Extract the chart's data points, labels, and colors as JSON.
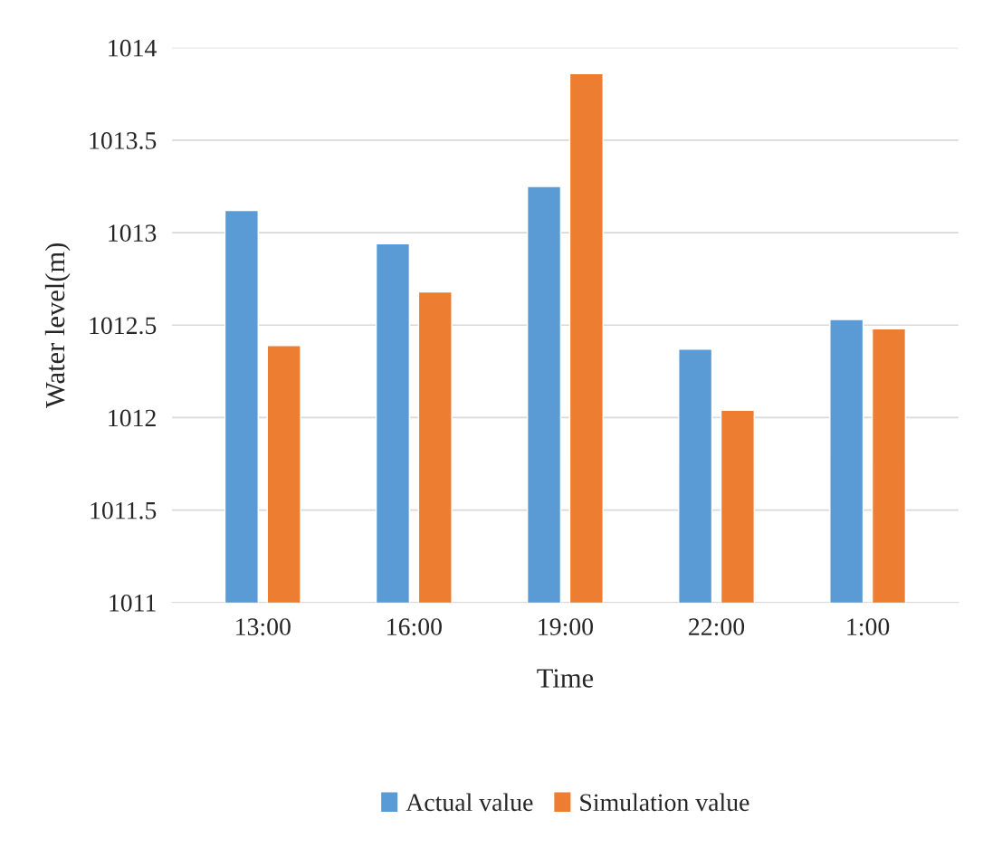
{
  "chart_data": {
    "type": "bar",
    "xlabel": "Time",
    "ylabel": "Water level(m)",
    "categories": [
      "13:00",
      "16:00",
      "19:00",
      "22:00",
      "1:00"
    ],
    "series": [
      {
        "name": "Actual value",
        "color": "#5b9bd5",
        "values": [
          1013.12,
          1012.94,
          1013.25,
          1012.37,
          1012.53
        ]
      },
      {
        "name": "Simulation value",
        "color": "#ed7d31",
        "values": [
          1012.39,
          1012.68,
          1013.86,
          1012.04,
          1012.48
        ]
      }
    ],
    "ylim": [
      1011,
      1014
    ],
    "yticks": [
      1011,
      1011.5,
      1012,
      1012.5,
      1013,
      1013.5,
      1014
    ],
    "grid": "y",
    "legend": "bottom"
  }
}
